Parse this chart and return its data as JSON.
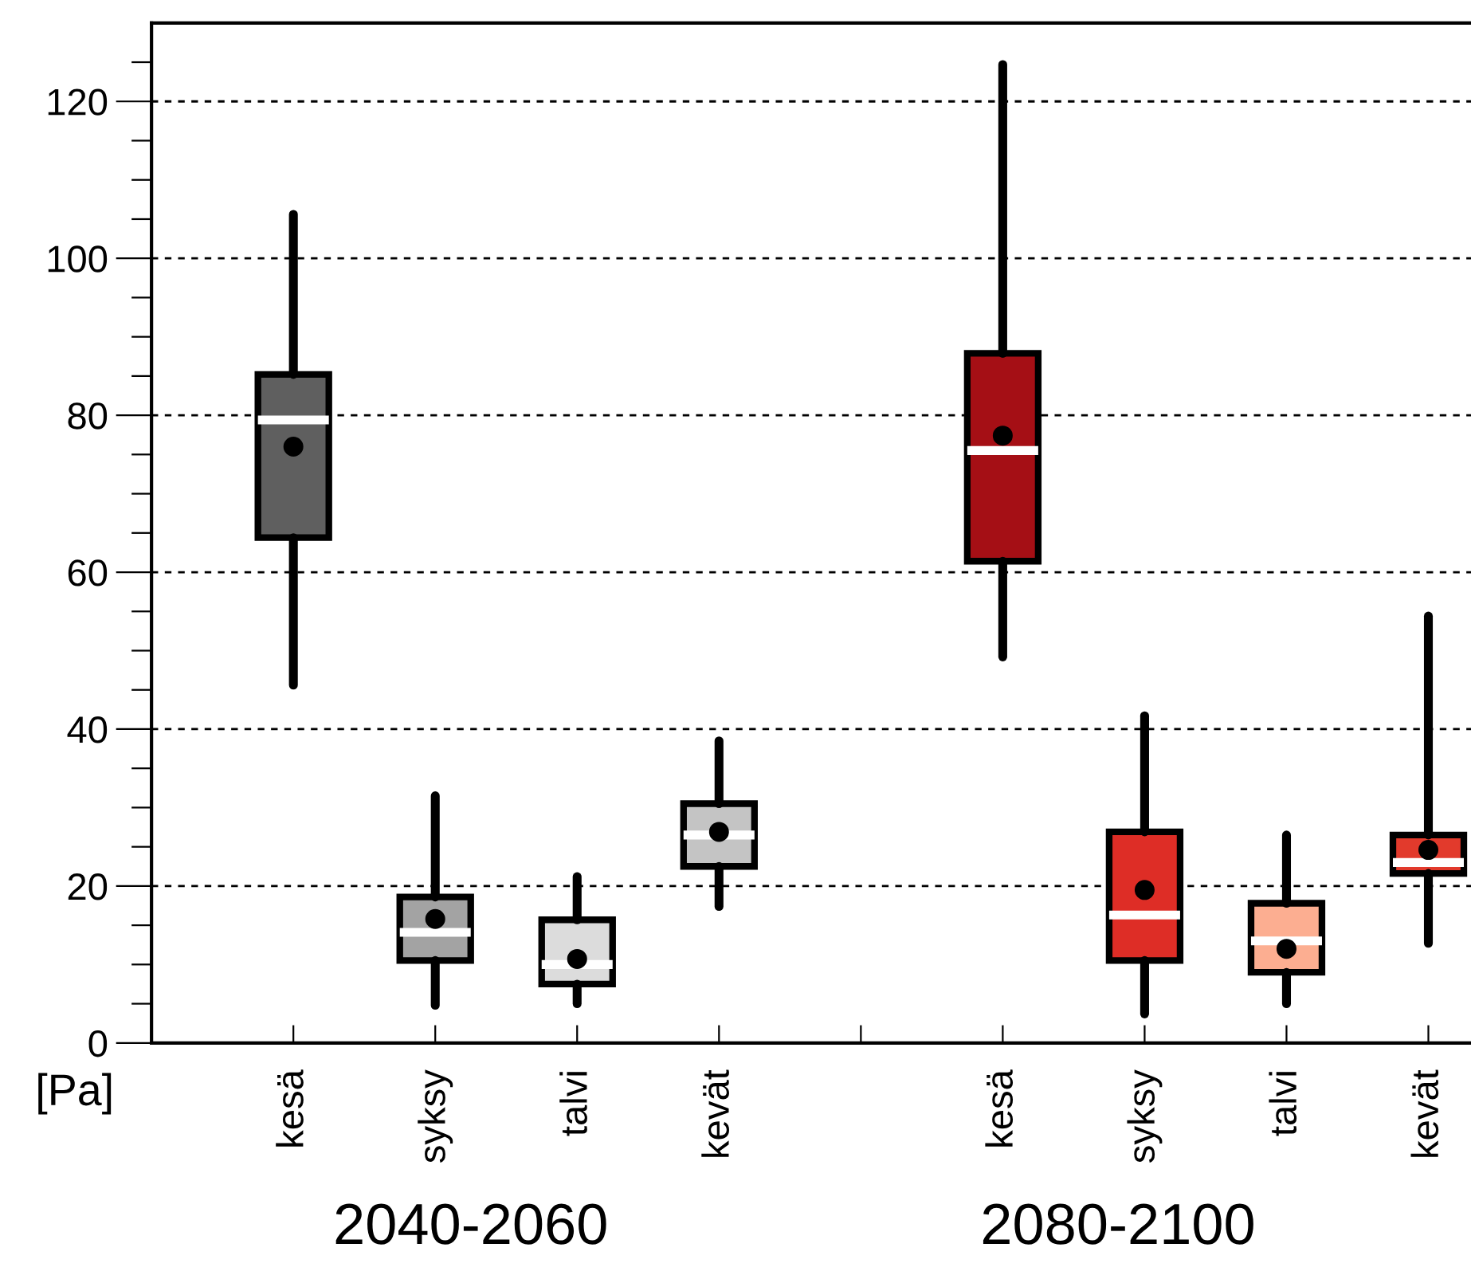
{
  "chart_data": {
    "type": "box",
    "categories": [
      null,
      "kesä",
      "syksy",
      "talvi",
      "kevät",
      null,
      "kesä",
      "syksy",
      "talvi",
      "kevät"
    ],
    "boxes": [
      null,
      {
        "low": 45.6,
        "q1": 64.4,
        "median": 79.4,
        "q3": 85.2,
        "high": 105.6,
        "mean": 76.0
      },
      {
        "low": 4.8,
        "q1": 10.5,
        "median": 14.1,
        "q3": 18.6,
        "high": 31.5,
        "mean": 15.8
      },
      {
        "low": 5.0,
        "q1": 7.5,
        "median": 10.0,
        "q3": 15.7,
        "high": 21.2,
        "mean": 10.7
      },
      {
        "low": 17.4,
        "q1": 22.5,
        "median": 26.5,
        "q3": 30.5,
        "high": 38.5,
        "mean": 26.9
      },
      null,
      {
        "low": 49.2,
        "q1": 61.4,
        "median": 75.5,
        "q3": 87.9,
        "high": 124.7,
        "mean": 77.4
      },
      {
        "low": 3.7,
        "q1": 10.5,
        "median": 16.3,
        "q3": 26.9,
        "high": 41.7,
        "mean": 19.5
      },
      {
        "low": 5.0,
        "q1": 9.0,
        "median": 13.0,
        "q3": 17.8,
        "high": 26.5,
        "mean": 12.0
      },
      {
        "low": 12.7,
        "q1": 21.6,
        "median": 23.0,
        "q3": 26.5,
        "high": 54.4,
        "mean": 24.6
      }
    ],
    "colors": [
      null,
      "#5f5f5f",
      "#a3a3a3",
      "#dcdcdc",
      "#c4c4c4",
      null,
      "#a50f15",
      "#de2d26",
      "#fcae91",
      "#e23a2c"
    ],
    "ylabel": "[Pa]",
    "ylim": [
      0,
      130
    ],
    "yticks": [
      0,
      {
        "value": 5,
        "label": null
      },
      {
        "value": 10,
        "label": null
      },
      {
        "value": 15,
        "label": null
      },
      20,
      {
        "value": 25,
        "label": null
      },
      {
        "value": 30,
        "label": null
      },
      {
        "value": 35,
        "label": null
      },
      40,
      {
        "value": 45,
        "label": null
      },
      {
        "value": 50,
        "label": null
      },
      {
        "value": 55,
        "label": null
      },
      60,
      {
        "value": 65,
        "label": null
      },
      {
        "value": 70,
        "label": null
      },
      {
        "value": 75,
        "label": null
      },
      80,
      {
        "value": 85,
        "label": null
      },
      {
        "value": 90,
        "label": null
      },
      {
        "value": 95,
        "label": null
      },
      100,
      {
        "value": 105,
        "label": null
      },
      {
        "value": 110,
        "label": null
      },
      {
        "value": 115,
        "label": null
      },
      120,
      {
        "value": 125,
        "label": null
      }
    ],
    "grid": "y",
    "annotations": [
      "2040-2060",
      "2080-2100"
    ]
  }
}
